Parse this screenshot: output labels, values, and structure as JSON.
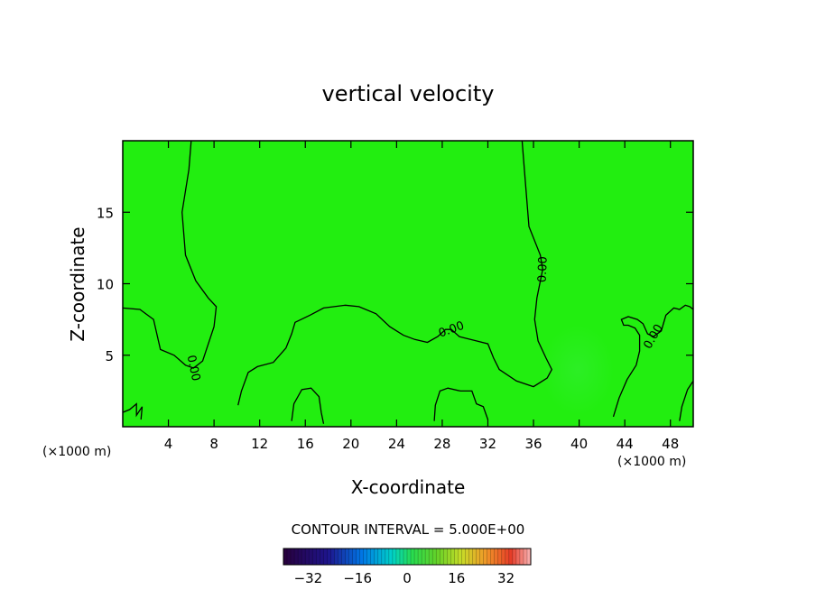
{
  "chart_data": {
    "type": "heatmap",
    "title": "vertical velocity",
    "xlabel": "X-coordinate",
    "ylabel": "Z-coordinate",
    "x_unit_left": "(×1000 m)",
    "x_unit_right": "(×1000 m)",
    "xlim": [
      0,
      50
    ],
    "ylim": [
      0,
      20
    ],
    "x_ticks": [
      4,
      8,
      12,
      16,
      20,
      24,
      28,
      32,
      36,
      40,
      44,
      48
    ],
    "y_ticks": [
      5,
      10,
      15
    ],
    "field_value": 0,
    "contour_label": "0.00",
    "contour_interval_text": "CONTOUR INTERVAL = 5.000E+00",
    "colorbar": {
      "min": -40,
      "max": 40,
      "ticks": [
        -32,
        -16,
        0,
        16,
        32
      ]
    },
    "contour_lines": [
      [
        [
          6,
          20
        ],
        [
          5.8,
          18
        ],
        [
          5.2,
          15
        ],
        [
          5.5,
          12
        ],
        [
          6.4,
          10.2
        ],
        [
          7.5,
          9
        ],
        [
          8.2,
          8.4
        ],
        [
          8,
          7
        ],
        [
          7,
          4.6
        ],
        [
          6.2,
          4.1
        ],
        [
          5.5,
          4.3
        ],
        [
          4.5,
          5
        ],
        [
          3.3,
          5.4
        ],
        [
          2.7,
          7.5
        ],
        [
          1.5,
          8.2
        ],
        [
          0,
          8.3
        ]
      ],
      [
        [
          35,
          20
        ],
        [
          35.2,
          18
        ],
        [
          35.6,
          14
        ],
        [
          36.6,
          12
        ],
        [
          36.8,
          11
        ],
        [
          36.3,
          9
        ],
        [
          36.1,
          7.5
        ],
        [
          36.4,
          6
        ],
        [
          37.1,
          4.8
        ],
        [
          37.6,
          4
        ],
        [
          37.2,
          3.4
        ],
        [
          36,
          2.8
        ],
        [
          34.5,
          3.2
        ],
        [
          33,
          4
        ],
        [
          32.5,
          4.8
        ],
        [
          32,
          5.8
        ],
        [
          31,
          6
        ],
        [
          30,
          6.2
        ],
        [
          29.5,
          6.3
        ],
        [
          28.8,
          6.8
        ],
        [
          28.3,
          6.8
        ],
        [
          27.6,
          6.3
        ],
        [
          26.7,
          5.9
        ],
        [
          25.6,
          6.1
        ],
        [
          24.6,
          6.4
        ],
        [
          23.4,
          7
        ],
        [
          22.2,
          7.9
        ],
        [
          20.7,
          8.4
        ],
        [
          19.5,
          8.5
        ],
        [
          17.6,
          8.3
        ],
        [
          16.4,
          7.8
        ],
        [
          15.1,
          7.3
        ],
        [
          14.8,
          6.5
        ],
        [
          14.3,
          5.5
        ],
        [
          13.2,
          4.5
        ],
        [
          11.8,
          4.2
        ],
        [
          11,
          3.8
        ],
        [
          10.4,
          2.5
        ],
        [
          10.1,
          1.5
        ]
      ],
      [
        [
          43,
          0.7
        ],
        [
          43.5,
          2
        ],
        [
          44.2,
          3.3
        ],
        [
          45,
          4.3
        ],
        [
          45.3,
          5.3
        ],
        [
          45.3,
          6.4
        ],
        [
          44.9,
          6.9
        ],
        [
          44.3,
          7.1
        ],
        [
          43.9,
          7.1
        ],
        [
          43.7,
          7.5
        ],
        [
          44.3,
          7.7
        ],
        [
          45.1,
          7.5
        ],
        [
          45.6,
          7.2
        ],
        [
          46,
          6.5
        ],
        [
          46.5,
          6.3
        ],
        [
          47.2,
          6.7
        ],
        [
          47.6,
          7.8
        ],
        [
          48.3,
          8.3
        ],
        [
          48.8,
          8.2
        ],
        [
          49.3,
          8.5
        ],
        [
          49.7,
          8.4
        ],
        [
          50,
          8.2
        ]
      ],
      [
        [
          0,
          1
        ],
        [
          0.6,
          1.2
        ],
        [
          1.2,
          1.6
        ],
        [
          1.2,
          0.8
        ],
        [
          1.7,
          1.4
        ],
        [
          1.6,
          0.5
        ]
      ],
      [
        [
          14.8,
          0.4
        ],
        [
          15,
          1.6
        ],
        [
          15.7,
          2.6
        ],
        [
          16.5,
          2.7
        ],
        [
          17.2,
          2.1
        ],
        [
          17.4,
          1
        ],
        [
          17.6,
          0.2
        ]
      ],
      [
        [
          27.3,
          0.4
        ],
        [
          27.4,
          1.5
        ],
        [
          27.8,
          2.5
        ],
        [
          28.5,
          2.7
        ],
        [
          29.6,
          2.5
        ],
        [
          30.6,
          2.5
        ],
        [
          31,
          1.6
        ],
        [
          31.6,
          1.4
        ],
        [
          32,
          0.5
        ]
      ],
      [
        [
          48.8,
          0.4
        ],
        [
          49,
          1.4
        ],
        [
          49.5,
          2.6
        ],
        [
          50,
          3.2
        ]
      ]
    ]
  }
}
